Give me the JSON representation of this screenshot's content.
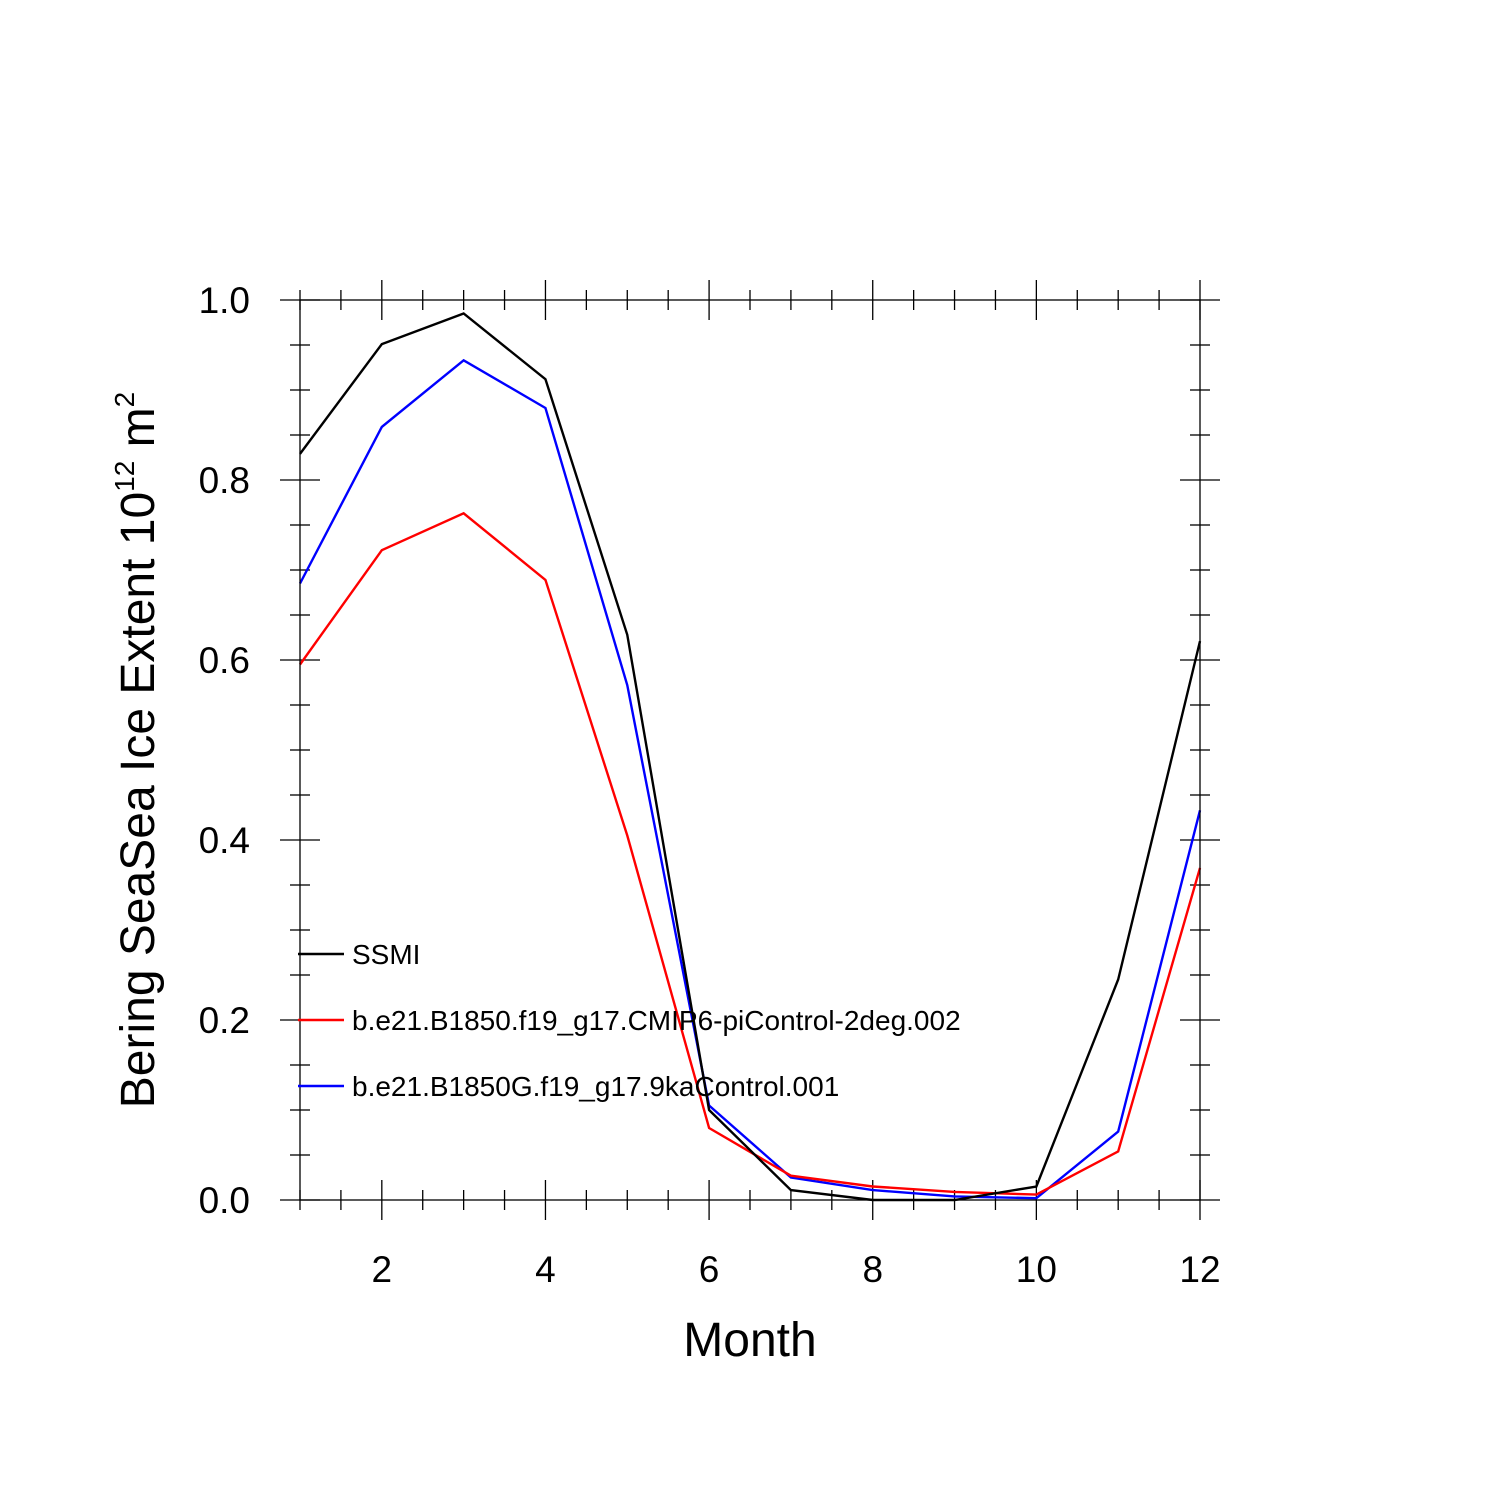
{
  "chart_data": {
    "type": "line",
    "xlabel": "Month",
    "ylabel_main": "Bering SeaSea Ice Extent 10",
    "ylabel_exp": "12",
    "ylabel_unit": " m",
    "ylabel_unit_exp": "2",
    "xlim": [
      1,
      12
    ],
    "ylim": [
      0,
      1
    ],
    "xticks": [
      2,
      4,
      6,
      8,
      10,
      12
    ],
    "xtick_labels": [
      "2",
      "4",
      "6",
      "8",
      "10",
      "12"
    ],
    "yticks": [
      0,
      0.2,
      0.4,
      0.6,
      0.8,
      1.0
    ],
    "ytick_labels": [
      "0.0",
      "0.2",
      "0.4",
      "0.6",
      "0.8",
      "1.0"
    ],
    "x": [
      1,
      2,
      3,
      4,
      5,
      6,
      7,
      8,
      9,
      10,
      11,
      12
    ],
    "series": [
      {
        "name": "SSMI",
        "color": "#000000",
        "values": [
          0.829,
          0.951,
          0.985,
          0.912,
          0.628,
          0.1,
          0.011,
          0.0,
          0.0,
          0.015,
          0.245,
          0.621
        ]
      },
      {
        "name": "b.e21.B1850.f19_g17.CMIP6-piControl-2deg.002",
        "color": "#ff0000",
        "values": [
          0.595,
          0.722,
          0.763,
          0.689,
          0.405,
          0.08,
          0.027,
          0.015,
          0.009,
          0.006,
          0.054,
          0.369
        ]
      },
      {
        "name": "b.e21.B1850G.f19_g17.9kaControl.001",
        "color": "#0000ff",
        "values": [
          0.685,
          0.859,
          0.933,
          0.88,
          0.572,
          0.105,
          0.025,
          0.011,
          0.004,
          0.002,
          0.076,
          0.433
        ]
      }
    ],
    "grid": false,
    "legend_position": "lower-left, inside plot"
  }
}
